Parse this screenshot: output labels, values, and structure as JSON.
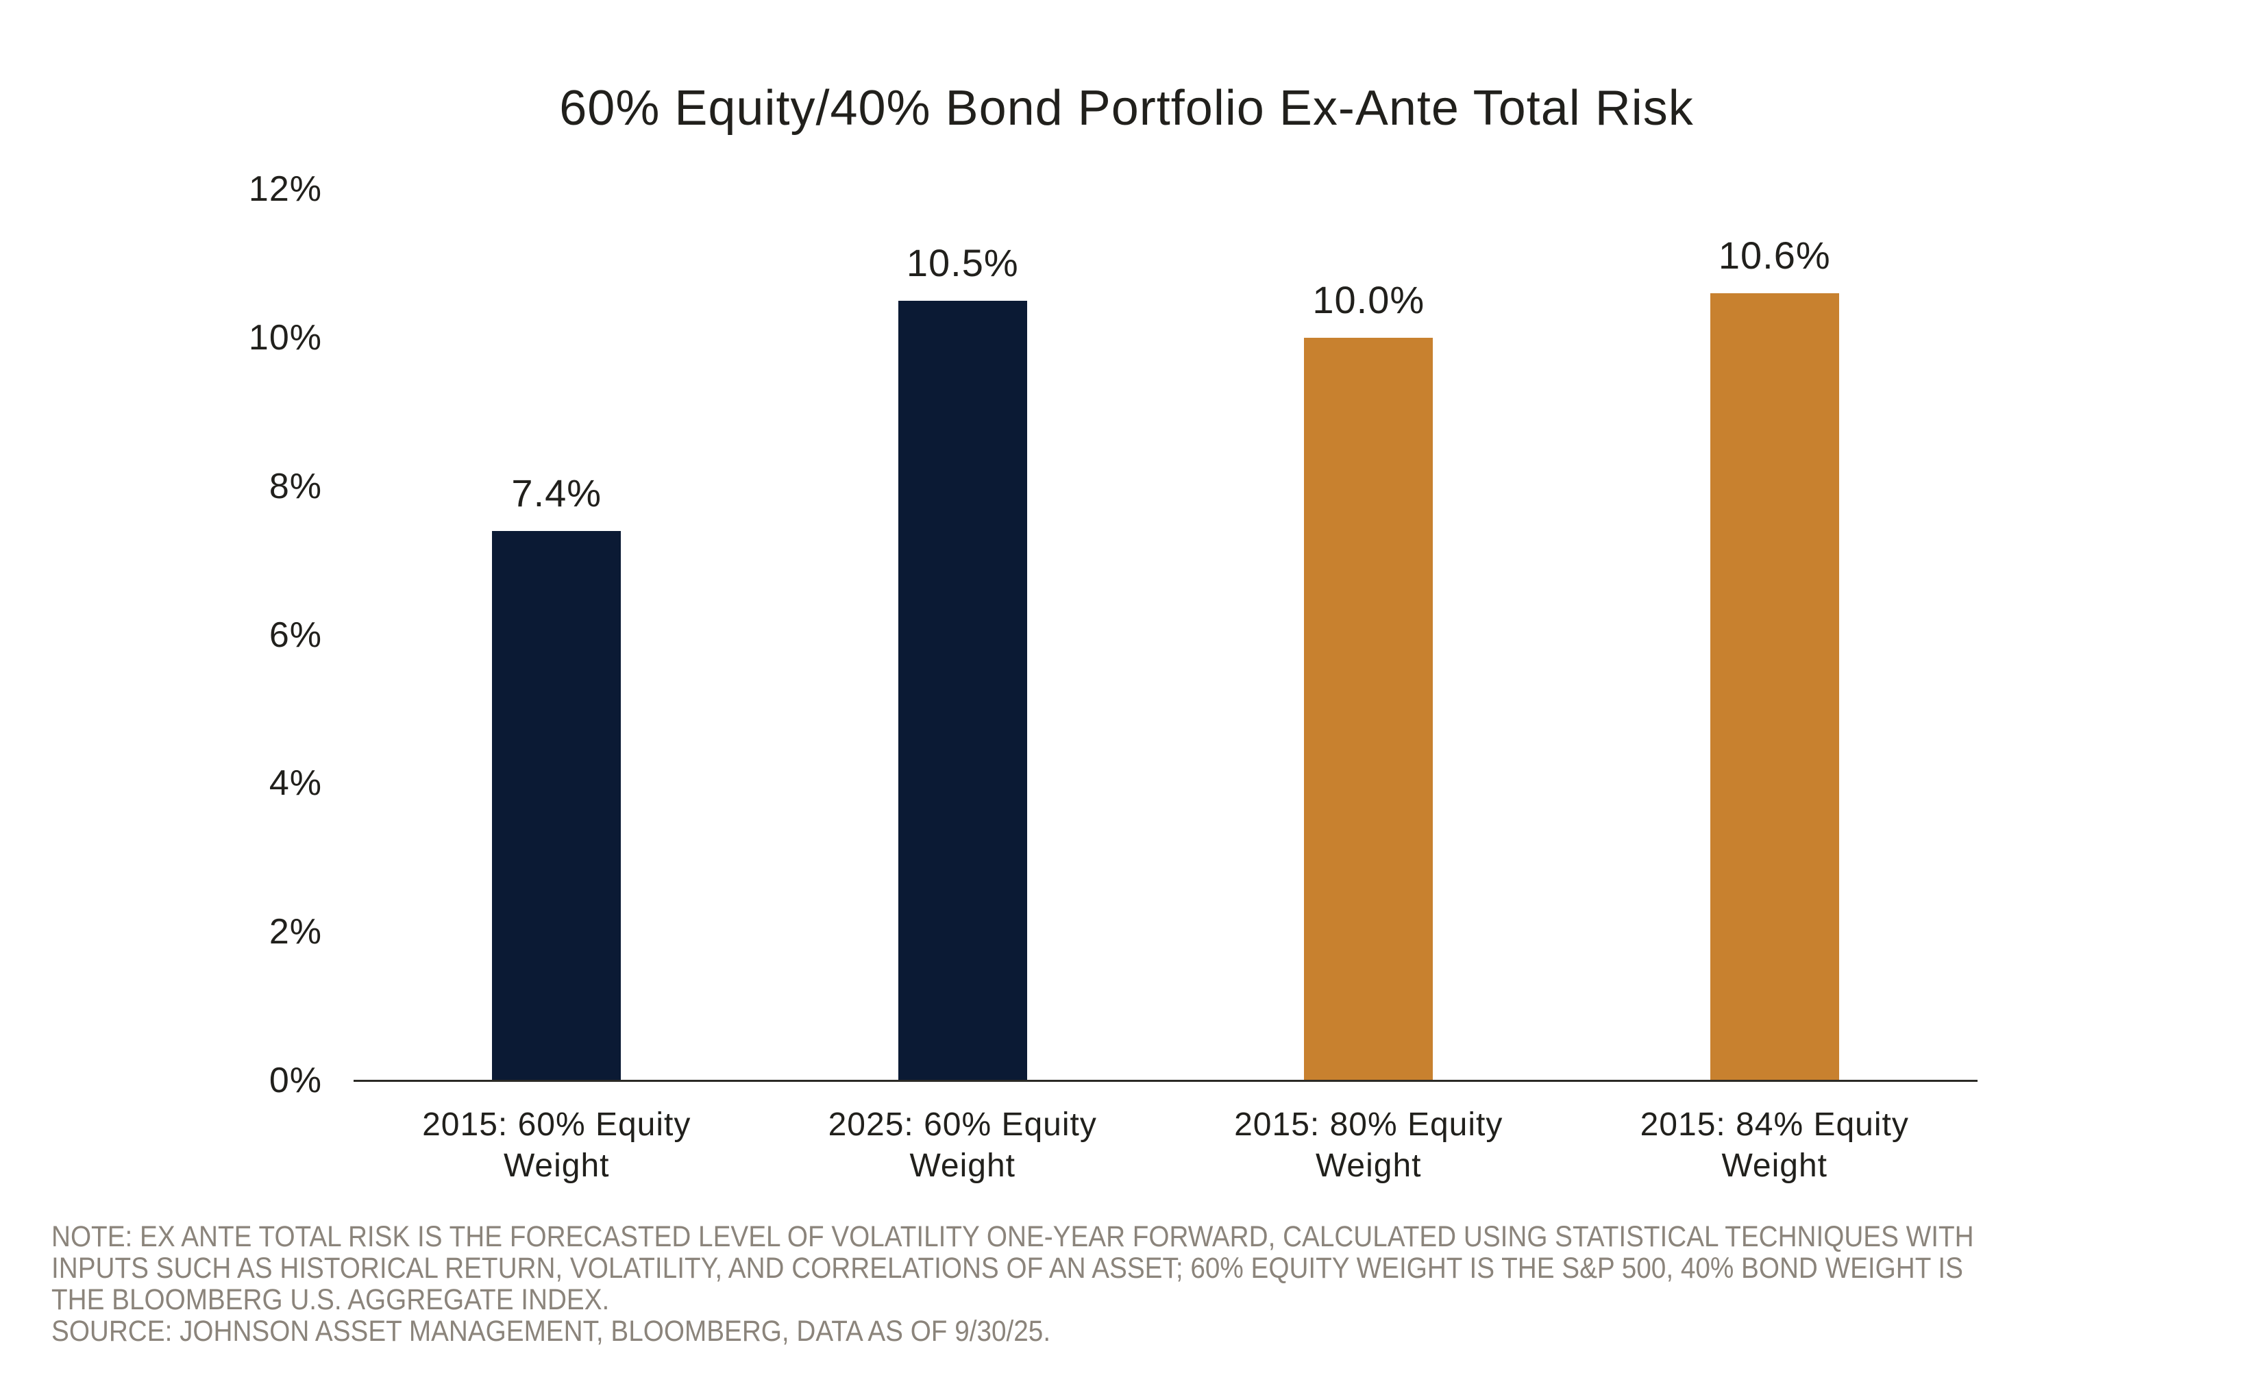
{
  "title": "60% Equity/40% Bond Portfolio Ex-Ante Total Risk",
  "colors": {
    "navy": "#0b1a34",
    "orange": "#c8812f",
    "text_dark": "#21201c",
    "note_gray": "#8b847b",
    "axis_line": "#2b2a25"
  },
  "chart_data": {
    "type": "bar",
    "title": "60% Equity/40% Bond Portfolio Ex-Ante Total Risk",
    "categories": [
      "2015: 60% Equity Weight",
      "2025: 60% Equity Weight",
      "2015: 80% Equity Weight",
      "2015: 84% Equity Weight"
    ],
    "values": [
      7.4,
      10.5,
      10.0,
      10.6
    ],
    "value_labels": [
      "7.4%",
      "10.5%",
      "10.0%",
      "10.6%"
    ],
    "bar_colors": [
      "#0b1a34",
      "#0b1a34",
      "#c8812f",
      "#c8812f"
    ],
    "xlabel": "",
    "ylabel": "",
    "ylim": [
      0,
      12
    ],
    "yticks": [
      0,
      2,
      4,
      6,
      8,
      10,
      12
    ],
    "ytick_labels": [
      "0%",
      "2%",
      "4%",
      "6%",
      "8%",
      "10%",
      "12%"
    ],
    "grid": false,
    "legend": "none"
  },
  "note": {
    "lines": [
      "NOTE: EX ANTE TOTAL RISK IS THE FORECASTED LEVEL OF VOLATILITY ONE-YEAR FORWARD, CALCULATED USING STATISTICAL TECHNIQUES WITH",
      "INPUTS SUCH AS HISTORICAL RETURN, VOLATILITY, AND CORRELATIONS OF AN ASSET; 60% EQUITY WEIGHT IS THE S&P 500, 40% BOND WEIGHT IS",
      "THE BLOOMBERG U.S. AGGREGATE INDEX."
    ],
    "source": "SOURCE: JOHNSON ASSET MANAGEMENT, BLOOMBERG, DATA AS OF 9/30/25."
  }
}
